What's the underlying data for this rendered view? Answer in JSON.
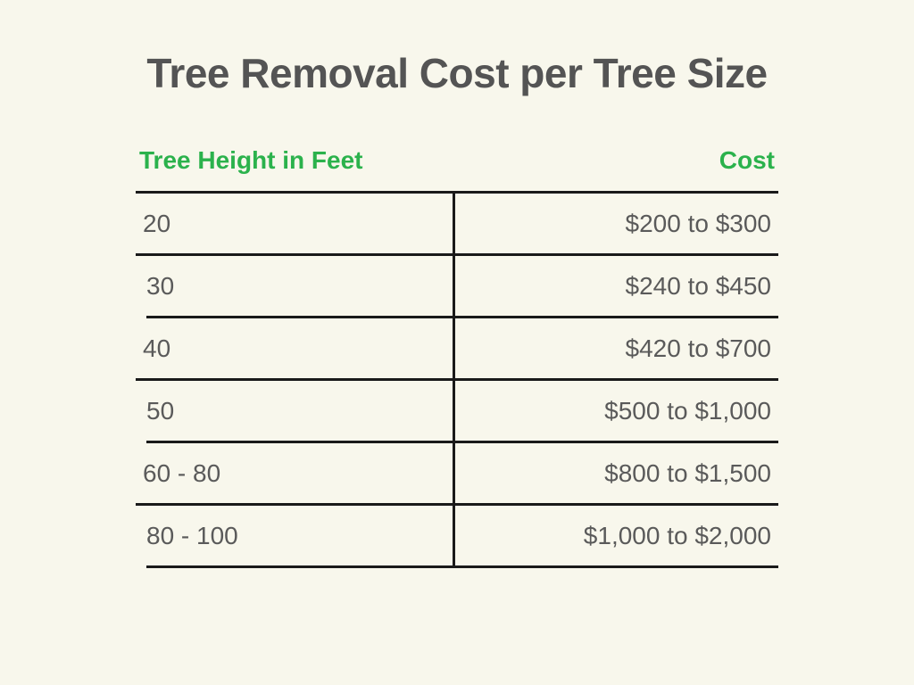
{
  "title": "Tree Removal Cost per Tree Size",
  "background_color": "#f8f7ec",
  "table": {
    "type": "table",
    "header_color": "#2bb24c",
    "text_color": "#5a5a5a",
    "border_color": "#1a1a1a",
    "title_fontsize": 46,
    "header_fontsize": 28,
    "cell_fontsize": 28,
    "columns": [
      {
        "label": "Tree Height in Feet",
        "align": "left"
      },
      {
        "label": "Cost",
        "align": "right"
      }
    ],
    "rows": [
      {
        "height": "20",
        "cost": "$200 to $300"
      },
      {
        "height": "30",
        "cost": "$240 to $450"
      },
      {
        "height": "40",
        "cost": "$420 to $700"
      },
      {
        "height": "50",
        "cost": "$500 to $1,000"
      },
      {
        "height": "60 - 80",
        "cost": "$800 to $1,500"
      },
      {
        "height": "80 - 100",
        "cost": "$1,000 to $2,000"
      }
    ]
  }
}
